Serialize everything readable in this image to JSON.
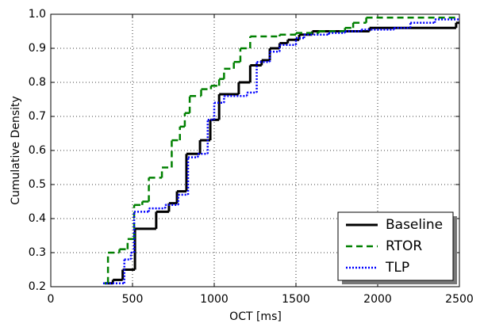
{
  "chart_data": {
    "type": "line",
    "step": "post",
    "xlabel": "OCT [ms]",
    "ylabel": "Cumulative Density",
    "xlim": [
      0,
      2500
    ],
    "ylim": [
      0.2,
      1.0
    ],
    "xticks": [
      0,
      500,
      1000,
      1500,
      2000,
      2500
    ],
    "yticks": [
      0.2,
      0.3,
      0.4,
      0.5,
      0.6,
      0.7,
      0.8,
      0.9,
      {
        "value": 1,
        "label": "1.0"
      }
    ],
    "grid": true,
    "legend": "lower right",
    "series": [
      {
        "name": "Baseline",
        "color": "#000000",
        "dash": "solid",
        "x": [
          330,
          380,
          440,
          515,
          645,
          723,
          772,
          830,
          913,
          976,
          1030,
          1150,
          1220,
          1290,
          1340,
          1400,
          1450,
          1520,
          1600,
          1950,
          2480
        ],
        "values": [
          0.21,
          0.22,
          0.25,
          0.37,
          0.42,
          0.445,
          0.48,
          0.59,
          0.63,
          0.69,
          0.765,
          0.8,
          0.85,
          0.865,
          0.9,
          0.915,
          0.925,
          0.94,
          0.95,
          0.96,
          0.975
        ]
      },
      {
        "name": "RTOR",
        "color": "#008000",
        "dash": "dashed",
        "x": [
          330,
          350,
          420,
          470,
          510,
          560,
          600,
          680,
          740,
          790,
          820,
          850,
          920,
          980,
          1030,
          1060,
          1120,
          1160,
          1220,
          1400,
          1500,
          1640,
          1800,
          1850,
          1930
        ],
        "values": [
          0.21,
          0.3,
          0.31,
          0.34,
          0.44,
          0.45,
          0.52,
          0.55,
          0.63,
          0.67,
          0.71,
          0.76,
          0.78,
          0.79,
          0.81,
          0.84,
          0.86,
          0.9,
          0.935,
          0.94,
          0.945,
          0.95,
          0.96,
          0.975,
          0.99
        ]
      },
      {
        "name": "TLP",
        "color": "#0000ff",
        "dash": "dotted",
        "x": [
          320,
          450,
          490,
          510,
          600,
          700,
          780,
          840,
          900,
          960,
          1000,
          1060,
          1200,
          1260,
          1340,
          1400,
          1500,
          1550,
          1700,
          1800,
          1900,
          2100,
          2200,
          2350
        ],
        "values": [
          0.21,
          0.28,
          0.3,
          0.42,
          0.43,
          0.44,
          0.47,
          0.58,
          0.59,
          0.69,
          0.74,
          0.76,
          0.77,
          0.86,
          0.89,
          0.91,
          0.93,
          0.94,
          0.945,
          0.95,
          0.955,
          0.96,
          0.975,
          0.985
        ]
      }
    ]
  }
}
